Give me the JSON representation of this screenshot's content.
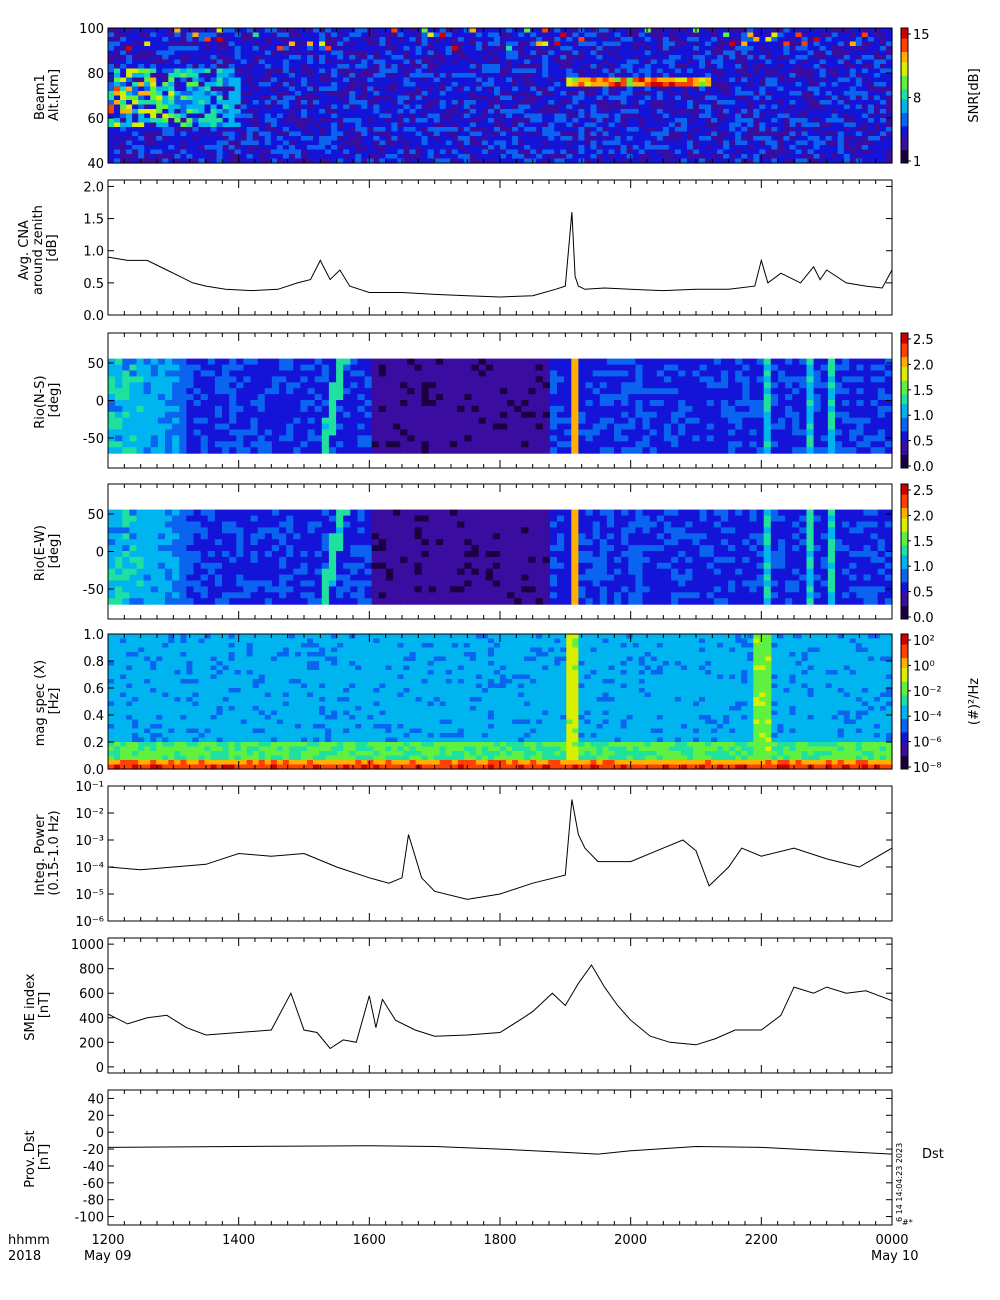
{
  "x_axis": {
    "row1_label": "hhmm",
    "row2_label": "2018",
    "ticks": [
      "1200",
      "1400",
      "1600",
      "1800",
      "2000",
      "2200",
      "0000"
    ],
    "start_date": "May 09",
    "end_date": "May 10",
    "range_hours": [
      12,
      24
    ]
  },
  "stamp": {
    "text": "6 14 14:04:23 2023",
    "mark": "#*"
  },
  "colormap": [
    "#1a0040",
    "#3a0ca0",
    "#1414d8",
    "#0a64f0",
    "#00b4f0",
    "#20e0a0",
    "#60f040",
    "#d8f000",
    "#ffb000",
    "#ff4000",
    "#d00000"
  ],
  "chart_data": [
    {
      "id": "beam1",
      "type": "heatmap",
      "ylabel_lines": [
        "Beam1",
        "Alt.[km]"
      ],
      "ylim": [
        40,
        100
      ],
      "yticks": [
        "40",
        "60",
        "80",
        "100"
      ],
      "colorbar": {
        "label": "SNR[dB]",
        "ticks": [
          "1",
          "8",
          "15"
        ],
        "range": [
          1,
          15
        ]
      }
    },
    {
      "id": "cna",
      "type": "line",
      "ylabel_lines": [
        "Avg. CNA",
        "around zenith",
        "[dB]"
      ],
      "ylim": [
        0,
        2.1
      ],
      "yticks": [
        "0.0",
        "0.5",
        "1.0",
        "1.5",
        "2.0"
      ],
      "x": [
        12.0,
        12.3,
        12.6,
        12.9,
        13.1,
        13.3,
        13.5,
        13.8,
        14.2,
        14.6,
        14.9,
        15.1,
        15.25,
        15.4,
        15.55,
        15.7,
        15.85,
        16.0,
        16.5,
        17.0,
        17.5,
        18.0,
        18.5,
        18.85,
        19.0,
        19.1,
        19.15,
        19.2,
        19.3,
        19.6,
        20.0,
        20.5,
        21.0,
        21.5,
        21.9,
        22.0,
        22.1,
        22.3,
        22.6,
        22.8,
        22.9,
        23.0,
        23.3,
        23.6,
        23.85,
        24.0
      ],
      "values": [
        0.9,
        0.85,
        0.85,
        0.7,
        0.6,
        0.5,
        0.45,
        0.4,
        0.38,
        0.4,
        0.5,
        0.55,
        0.85,
        0.55,
        0.7,
        0.45,
        0.4,
        0.35,
        0.35,
        0.32,
        0.3,
        0.28,
        0.3,
        0.4,
        0.45,
        1.6,
        0.6,
        0.45,
        0.4,
        0.42,
        0.4,
        0.38,
        0.4,
        0.4,
        0.45,
        0.85,
        0.5,
        0.65,
        0.5,
        0.75,
        0.55,
        0.7,
        0.5,
        0.45,
        0.42,
        0.7
      ]
    },
    {
      "id": "rio_ns",
      "type": "heatmap",
      "ylabel_lines": [
        "Rio(N-S)",
        "[deg]"
      ],
      "ylim": [
        -90,
        90
      ],
      "yticks": [
        "-50",
        "0",
        "50"
      ],
      "colorbar": {
        "label": "",
        "ticks": [
          "0.0",
          "0.5",
          "1.0",
          "1.5",
          "2.0",
          "2.5"
        ],
        "range": [
          0,
          2.6
        ]
      }
    },
    {
      "id": "rio_ew",
      "type": "heatmap",
      "ylabel_lines": [
        "Rio(E-W)",
        "[deg]"
      ],
      "ylim": [
        -90,
        90
      ],
      "yticks": [
        "-50",
        "0",
        "50"
      ],
      "colorbar": {
        "label": "",
        "ticks": [
          "0.0",
          "0.5",
          "1.0",
          "1.5",
          "2.0",
          "2.5"
        ],
        "range": [
          0,
          2.6
        ]
      }
    },
    {
      "id": "magspec",
      "type": "heatmap",
      "ylabel_lines": [
        "mag spec (X)",
        "[Hz]"
      ],
      "ylim": [
        0,
        1.0
      ],
      "yticks": [
        "0.0",
        "0.2",
        "0.4",
        "0.6",
        "0.8",
        "1.0"
      ],
      "colorbar": {
        "label": "(#)²/Hz",
        "ticks": [
          "10⁻⁸",
          "10⁻⁶",
          "10⁻⁴",
          "10⁻²",
          "10⁰",
          "10²"
        ],
        "range_log": [
          -9,
          2.5
        ]
      }
    },
    {
      "id": "integ",
      "type": "line",
      "log_y": true,
      "ylabel_lines": [
        "Integ. Power",
        "(0.15-1.0 Hz)"
      ],
      "ylim_log": [
        -6,
        -1
      ],
      "yticks": [
        "10⁻⁶",
        "10⁻⁵",
        "10⁻⁴",
        "10⁻³",
        "10⁻²",
        "10⁻¹"
      ],
      "x": [
        12.0,
        12.5,
        13.0,
        13.5,
        14.0,
        14.5,
        15.0,
        15.5,
        16.0,
        16.3,
        16.5,
        16.6,
        16.7,
        16.8,
        17.0,
        17.5,
        18.0,
        18.5,
        19.0,
        19.1,
        19.2,
        19.3,
        19.5,
        20.0,
        20.5,
        20.8,
        21.0,
        21.2,
        21.5,
        21.7,
        22.0,
        22.5,
        23.0,
        23.5,
        24.0
      ],
      "values": [
        -4.0,
        -4.1,
        -4.0,
        -3.9,
        -3.5,
        -3.6,
        -3.5,
        -4.0,
        -4.4,
        -4.6,
        -4.4,
        -2.8,
        -3.6,
        -4.4,
        -4.9,
        -5.2,
        -5.0,
        -4.6,
        -4.3,
        -1.5,
        -2.8,
        -3.3,
        -3.8,
        -3.8,
        -3.3,
        -3.0,
        -3.4,
        -4.7,
        -4.0,
        -3.3,
        -3.6,
        -3.3,
        -3.7,
        -4.0,
        -3.3
      ]
    },
    {
      "id": "sme",
      "type": "line",
      "ylabel_lines": [
        "SME index",
        "[nT]"
      ],
      "ylim": [
        -50,
        1050
      ],
      "yticks": [
        "0",
        "200",
        "400",
        "600",
        "800",
        "1000"
      ],
      "x": [
        12.0,
        12.3,
        12.6,
        12.9,
        13.2,
        13.5,
        14.0,
        14.5,
        14.8,
        15.0,
        15.2,
        15.4,
        15.6,
        15.8,
        16.0,
        16.1,
        16.2,
        16.4,
        16.7,
        17.0,
        17.5,
        18.0,
        18.3,
        18.5,
        18.8,
        19.0,
        19.2,
        19.4,
        19.6,
        19.8,
        20.0,
        20.3,
        20.6,
        21.0,
        21.3,
        21.6,
        22.0,
        22.3,
        22.5,
        22.8,
        23.0,
        23.3,
        23.6,
        24.0
      ],
      "values": [
        430,
        350,
        400,
        420,
        320,
        260,
        280,
        300,
        600,
        300,
        280,
        150,
        220,
        200,
        580,
        320,
        550,
        380,
        300,
        250,
        260,
        280,
        380,
        450,
        600,
        500,
        680,
        830,
        650,
        500,
        380,
        250,
        200,
        180,
        230,
        300,
        300,
        420,
        650,
        600,
        650,
        600,
        620,
        540
      ]
    },
    {
      "id": "dst",
      "type": "line",
      "ylabel_lines": [
        "Prov. Dst",
        "[nT]"
      ],
      "ylim": [
        -110,
        50
      ],
      "yticks": [
        "-100",
        "-80",
        "-60",
        "-40",
        "-20",
        "0",
        "20",
        "40"
      ],
      "series_label": "Dst",
      "x": [
        12.0,
        14.0,
        16.0,
        17.0,
        18.0,
        19.0,
        19.5,
        20.0,
        21.0,
        22.0,
        23.0,
        24.0
      ],
      "values": [
        -18,
        -17,
        -16,
        -17,
        -20,
        -24,
        -26,
        -22,
        -17,
        -18,
        -22,
        -26
      ]
    }
  ]
}
